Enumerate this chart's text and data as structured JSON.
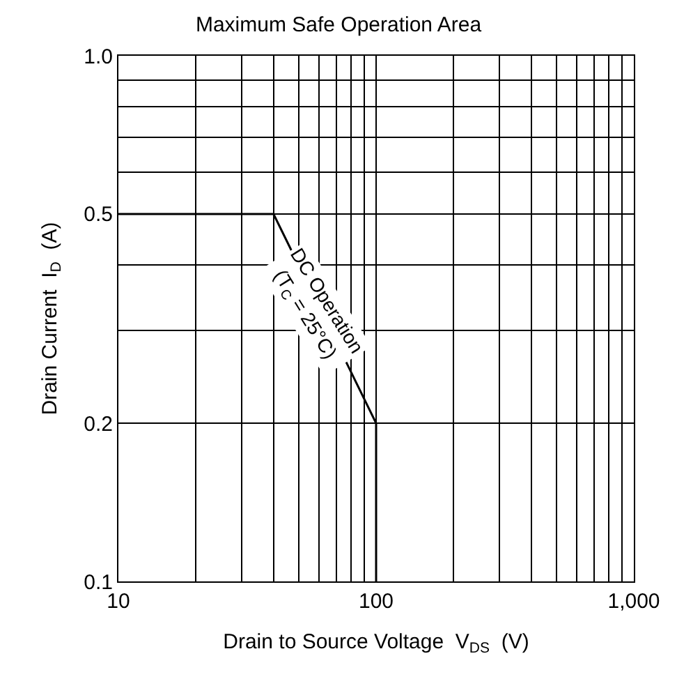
{
  "chart_data": {
    "type": "line",
    "title": "Maximum Safe Operation Area",
    "xlabel": "Drain to Source Voltage  V$_{DS}$  (V)",
    "ylabel": "Drain Current  I$_{D}$  (A)",
    "series": [
      {
        "color": "#000000",
        "x": [
          10,
          40,
          100,
          100
        ],
        "values": [
          0.5,
          0.5,
          0.2,
          0.1
        ]
      }
    ],
    "annotations": [
      {
        "text": "DC Operation\n(T$_{C}$ = 25°C)",
        "x": 58,
        "y": 0.33
      }
    ],
    "log": "xy",
    "xlim": [
      10,
      1000
    ],
    "ylim": [
      0.1,
      1.0
    ],
    "xticks": [
      10,
      100,
      {
        "value": 1000,
        "label": "1,000"
      }
    ],
    "yticks": [
      0.1,
      0.2,
      0.5,
      {
        "value": 1.0,
        "label": "1.0"
      }
    ],
    "grid": true,
    "marker": "none",
    "line_style": "solid"
  }
}
